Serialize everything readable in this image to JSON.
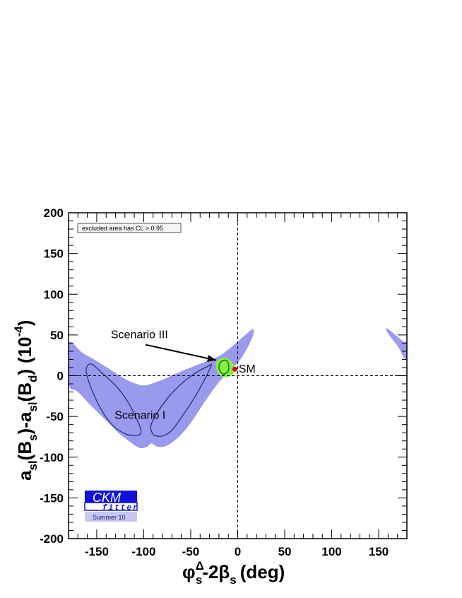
{
  "chart_data": {
    "type": "contour",
    "xlabel": {
      "base": "φ",
      "sup": "Δ",
      "sub": "s",
      "rest": "-2β",
      "sub2": "s",
      "unit": "(deg)"
    },
    "ylabel": {
      "a1": "a",
      "a1sub": "sl",
      "b1": "(B",
      "b1sub": "s",
      "mid": ")-a",
      "a2sub": "sl",
      "b2": "(B",
      "b2sub": "d",
      "close": ")",
      "unit": "(10",
      "exp": "-4",
      "unitclose": ")"
    },
    "xlim": [
      -180,
      180
    ],
    "ylim": [
      -200,
      200
    ],
    "xticks": [
      -150,
      -100,
      -50,
      0,
      50,
      100,
      150
    ],
    "xtick_labels": [
      "-150",
      "-100",
      "-50",
      "0",
      "50",
      "100",
      "150"
    ],
    "yticks": [
      200,
      150,
      100,
      50,
      0,
      -50,
      -100,
      -150,
      -200
    ],
    "ytick_labels": [
      "200",
      "150",
      "100",
      "50",
      "0",
      "-50",
      "-100",
      "-150",
      "-200"
    ],
    "reference_lines": {
      "x": 0,
      "y": 0
    },
    "legend_note": "excluded area has CL > 0.95",
    "colors": {
      "allowed_region": "#9999ee",
      "scenario_contour": "#1a2a7a",
      "scenario3_fill": "#88ee44",
      "scenario3_edge": "#117711",
      "sm_point": "#dd0000"
    },
    "regions": [
      {
        "name": "Scenario I region (main band)",
        "points": [
          [
            -180,
            40
          ],
          [
            -165,
            28
          ],
          [
            -150,
            18
          ],
          [
            -135,
            7
          ],
          [
            -120,
            -4
          ],
          [
            -108,
            -10
          ],
          [
            -100,
            -12
          ],
          [
            -92,
            -10
          ],
          [
            -80,
            -5
          ],
          [
            -65,
            3
          ],
          [
            -50,
            10
          ],
          [
            -35,
            17
          ],
          [
            -20,
            24
          ],
          [
            -8,
            34
          ],
          [
            2,
            44
          ],
          [
            10,
            52
          ],
          [
            16,
            57
          ],
          [
            17,
            52
          ],
          [
            12,
            38
          ],
          [
            4,
            22
          ],
          [
            -6,
            8
          ],
          [
            -20,
            -8
          ],
          [
            -35,
            -32
          ],
          [
            -50,
            -58
          ],
          [
            -60,
            -72
          ],
          [
            -70,
            -82
          ],
          [
            -78,
            -87
          ],
          [
            -86,
            -87
          ],
          [
            -92,
            -83
          ],
          [
            -96,
            -87
          ],
          [
            -103,
            -89
          ],
          [
            -110,
            -85
          ],
          [
            -125,
            -72
          ],
          [
            -140,
            -55
          ],
          [
            -155,
            -38
          ],
          [
            -170,
            -20
          ],
          [
            -180,
            -10
          ]
        ]
      },
      {
        "name": "wrap-around region",
        "points": [
          [
            159,
            58
          ],
          [
            168,
            50
          ],
          [
            176,
            42
          ],
          [
            180,
            40
          ],
          [
            180,
            20
          ],
          [
            177,
            22
          ],
          [
            171,
            35
          ],
          [
            165,
            44
          ],
          [
            160,
            52
          ],
          [
            158,
            56
          ]
        ]
      }
    ],
    "contours": [
      {
        "name": "Scenario I left contour",
        "points": [
          [
            -160,
            12
          ],
          [
            -155,
            14
          ],
          [
            -145,
            4
          ],
          [
            -130,
            -12
          ],
          [
            -118,
            -30
          ],
          [
            -108,
            -52
          ],
          [
            -103,
            -67
          ],
          [
            -106,
            -73
          ],
          [
            -118,
            -72
          ],
          [
            -132,
            -62
          ],
          [
            -145,
            -42
          ],
          [
            -156,
            -15
          ],
          [
            -161,
            4
          ]
        ]
      },
      {
        "name": "Scenario I right contour",
        "points": [
          [
            -92,
            -67
          ],
          [
            -89,
            -73
          ],
          [
            -80,
            -74
          ],
          [
            -70,
            -67
          ],
          [
            -58,
            -48
          ],
          [
            -45,
            -25
          ],
          [
            -34,
            -2
          ],
          [
            -28,
            13
          ],
          [
            -31,
            12
          ],
          [
            -44,
            4
          ],
          [
            -58,
            -8
          ],
          [
            -72,
            -24
          ],
          [
            -86,
            -46
          ],
          [
            -92,
            -60
          ]
        ]
      }
    ],
    "scenario3": {
      "points": [
        [
          -22,
          18
        ],
        [
          -15,
          22
        ],
        [
          -9,
          20
        ],
        [
          -4,
          13
        ],
        [
          -2,
          8
        ],
        [
          -6,
          1
        ],
        [
          -13,
          -2
        ],
        [
          -20,
          2
        ],
        [
          -23,
          10
        ]
      ],
      "inner": [
        [
          -18,
          17
        ],
        [
          -13,
          19
        ],
        [
          -10,
          15
        ],
        [
          -10,
          6
        ],
        [
          -15,
          2
        ],
        [
          -19,
          6
        ],
        [
          -20,
          12
        ]
      ]
    },
    "points": [
      {
        "name": "SM",
        "x": -3,
        "y": 8
      }
    ],
    "annotations": [
      {
        "text": "Scenario III",
        "x": -135,
        "y": 46
      },
      {
        "text": "SM",
        "x": 1,
        "y": 4
      },
      {
        "text": "Scenario I",
        "x": -131,
        "y": -53
      }
    ],
    "arrow": {
      "from": [
        -98,
        38
      ],
      "to": [
        -23,
        19
      ]
    }
  },
  "logo": {
    "title": "CKM",
    "sub": "fitter",
    "season": "Summer 10"
  }
}
